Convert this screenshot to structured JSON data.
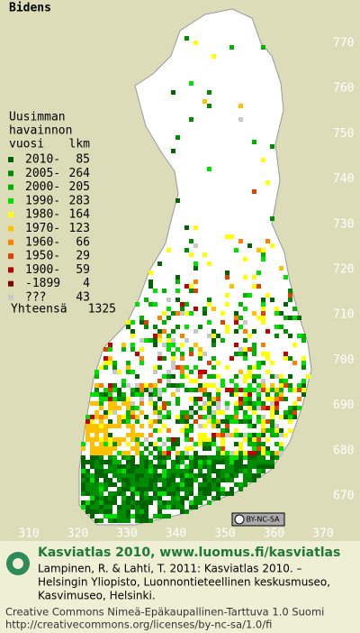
{
  "title": "Bidens",
  "legend": {
    "heading": [
      "Uusimman",
      "havainnon",
      "vuosi"
    ],
    "count_heading": "lkm",
    "rows": [
      {
        "label": "2010-",
        "count": 85,
        "color": "#006400"
      },
      {
        "label": "2005-",
        "count": 264,
        "color": "#008c00"
      },
      {
        "label": "2000-",
        "count": 205,
        "color": "#00b400"
      },
      {
        "label": "1990-",
        "count": 283,
        "color": "#00e000"
      },
      {
        "label": "1980-",
        "count": 164,
        "color": "#ffff00"
      },
      {
        "label": "1970-",
        "count": 123,
        "color": "#ffc000"
      },
      {
        "label": "1960-",
        "count": 66,
        "color": "#ff8000"
      },
      {
        "label": "1950-",
        "count": 29,
        "color": "#e04000"
      },
      {
        "label": "1900-",
        "count": 59,
        "color": "#c00000"
      },
      {
        "label": "-1899",
        "count": 4,
        "color": "#800000"
      },
      {
        "label": "???",
        "count": 43,
        "color": "#c8c8c8"
      }
    ],
    "total_label": "Yhteensä",
    "total": 1325
  },
  "map": {
    "northing_ticks": [
      770,
      760,
      750,
      740,
      730,
      720,
      710,
      700,
      690,
      680,
      670
    ],
    "easting_ticks": [
      310,
      320,
      330,
      340,
      350,
      360,
      370
    ]
  },
  "license_badge": "BY-NC-SA",
  "credit": {
    "title": "Kasviatlas 2010, www.luomus.fi/kasviatlas",
    "citation": [
      "Lampinen, R. & Lahti, T. 2011: Kasviatlas 2010. –",
      "Helsingin Yliopisto, Luonnontieteellinen keskusmuseo,",
      "Kasvimuseo, Helsinki."
    ],
    "license": [
      "Creative Commons Nimeä-Epäkaupallinen-Tarttuva 1.0 Suomi",
      "http://creativecommons.org/licenses/by-nc-sa/1.0/fi"
    ]
  }
}
